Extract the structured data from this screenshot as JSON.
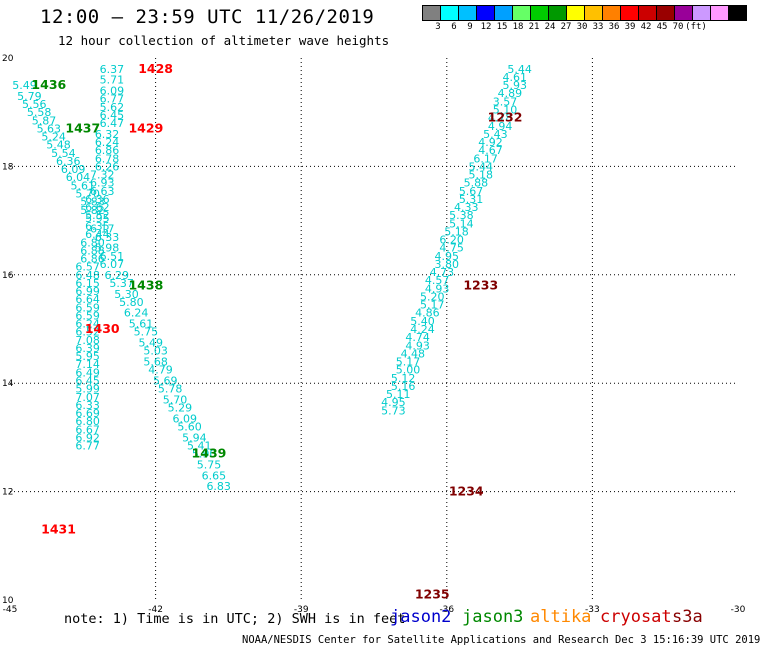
{
  "header": {
    "title": "12:00 – 23:59 UTC 11/26/2019",
    "subtitle": "12 hour collection of altimeter wave heights"
  },
  "colorbar": {
    "labels": [
      "3",
      "6",
      "9",
      "12",
      "15",
      "18",
      "21",
      "24",
      "27",
      "30",
      "33",
      "36",
      "39",
      "42",
      "45",
      "70",
      "(ft)"
    ],
    "colors": [
      "#808080",
      "#00ffff",
      "#00c0ff",
      "#0000ff",
      "#00a0ff",
      "#66ff66",
      "#00cc00",
      "#009900",
      "#ffff00",
      "#ffc000",
      "#ff8000",
      "#ff0000",
      "#cc0000",
      "#990000",
      "#990099",
      "#cc99ff",
      "#ff99ff",
      "#000000"
    ]
  },
  "footer": {
    "note": "note:  1) Time is in UTC;  2) SWH is in feet",
    "credit": "NOAA/NESDIS Center for Satellite Applications and Research    Dec  3 15:16:39 UTC 2019",
    "satellites": [
      {
        "name": "jason2",
        "color": "#0000cc"
      },
      {
        "name": "jason3",
        "color": "#008800"
      },
      {
        "name": "altika",
        "color": "#ff8800"
      },
      {
        "name": "cryosat",
        "color": "#cc0000"
      },
      {
        "name": "s3a",
        "color": "#880000"
      }
    ]
  },
  "chart_data": {
    "type": "scatter",
    "title": "12:00 – 23:59 UTC 11/26/2019",
    "xlim": [
      -45,
      -30
    ],
    "ylim": [
      10,
      20
    ],
    "x_ticks": [
      -45,
      -42,
      -39,
      -36,
      -33,
      -30
    ],
    "y_ticks": [
      10,
      12,
      14,
      16,
      18,
      20
    ],
    "grid": true,
    "value_color": "#00cccc",
    "passes": [
      {
        "time": "1428",
        "color": "#ff0000",
        "label_lon": -42.0,
        "label_lat": 19.8
      },
      {
        "time": "1429",
        "color": "#ff0000",
        "label_lon": -42.2,
        "label_lat": 18.7
      },
      {
        "time": "1430",
        "color": "#ff0000",
        "label_lon": -43.1,
        "label_lat": 15.0
      },
      {
        "time": "1431",
        "color": "#ff0000",
        "label_lon": -44.0,
        "label_lat": 11.3
      },
      {
        "time": "1436",
        "color": "#008800",
        "label_lon": -44.2,
        "label_lat": 19.5
      },
      {
        "time": "1437",
        "color": "#008800",
        "label_lon": -43.5,
        "label_lat": 18.7
      },
      {
        "time": "1438",
        "color": "#008800",
        "label_lon": -42.2,
        "label_lat": 15.8
      },
      {
        "time": "1439",
        "color": "#008800",
        "label_lon": -40.9,
        "label_lat": 12.7
      },
      {
        "time": "1232",
        "color": "#800000",
        "label_lon": -34.8,
        "label_lat": 18.9
      },
      {
        "time": "1233",
        "color": "#800000",
        "label_lon": -35.3,
        "label_lat": 15.8
      },
      {
        "time": "1234",
        "color": "#800000",
        "label_lon": -35.6,
        "label_lat": 12.0
      },
      {
        "time": "1235",
        "color": "#800000",
        "label_lon": -36.3,
        "label_lat": 10.1
      }
    ],
    "tracks": [
      {
        "name": "",
        "lon_start": -43.0,
        "lat_start": 19.9,
        "lon_end": -43.0,
        "lat_end": 10.1,
        "values": [
          "6.37",
          "5.71",
          "6.09",
          "6.77",
          "5.62",
          "6.45",
          "6.47",
          "6.32",
          "6.24",
          "6.86",
          "6.78",
          "6.26",
          "7.32",
          "6.93",
          "6.63",
          "6.36",
          "6.62",
          "5.52",
          "6.17",
          "6.33",
          "5.98",
          "6.51",
          "6.07",
          "6.29",
          "5.37",
          "5.30",
          "5.80",
          "6.24",
          "5.61",
          "5.75",
          "5.49",
          "5.03",
          "5.68",
          "4.79",
          "5.69",
          "5.78",
          "5.70",
          "5.29",
          "6.09",
          "5.60",
          "5.94",
          "5.41",
          "5.90",
          "5.75",
          "6.65",
          "6.83"
        ],
        "lons": [
          -42.9,
          -42.9,
          -42.9,
          -42.9,
          -42.9,
          -42.9,
          -42.9,
          -43.0,
          -43.0,
          -43.0,
          -43.0,
          -43.0,
          -43.1,
          -43.1,
          -43.1,
          -43.2,
          -43.2,
          -43.2,
          -43.1,
          -43.0,
          -43.0,
          -42.9,
          -42.9,
          -42.8,
          -42.7,
          -42.6,
          -42.5,
          -42.4,
          -42.3,
          -42.2,
          -42.1,
          -42.0,
          -42.0,
          -41.9,
          -41.8,
          -41.7,
          -41.6,
          -41.5,
          -41.4,
          -41.3,
          -41.2,
          -41.1,
          -41.0,
          -40.9,
          -40.8,
          -40.7
        ],
        "lats": [
          19.8,
          19.6,
          19.4,
          19.25,
          19.1,
          18.95,
          18.8,
          18.6,
          18.45,
          18.3,
          18.15,
          18.0,
          17.85,
          17.7,
          17.55,
          17.4,
          17.25,
          17.1,
          16.85,
          16.7,
          16.5,
          16.35,
          16.2,
          16.0,
          15.85,
          15.65,
          15.5,
          15.3,
          15.1,
          14.95,
          14.75,
          14.6,
          14.4,
          14.25,
          14.05,
          13.9,
          13.7,
          13.55,
          13.35,
          13.2,
          13.0,
          12.85,
          12.7,
          12.5,
          12.3,
          12.1
        ]
      }
    ],
    "tracks_left": {
      "values": [
        "5.49",
        "5.79",
        "5.56",
        "5.58",
        "5.87",
        "5.63",
        "5.24",
        "5.48",
        "5.54",
        "6.36",
        "6.09",
        "6.04",
        "5.61",
        "5.70",
        "5.83",
        "5.82",
        "5.95",
        "6.35",
        "6.44",
        "6.80",
        "6.88",
        "6.86",
        "6.57",
        "6.48",
        "6.15",
        "6.99",
        "6.64",
        "6.59",
        "6.59",
        "6.24",
        "6.52",
        "7.08",
        "6.39",
        "5.95",
        "7.14",
        "6.49",
        "6.45",
        "5.99",
        "7.07",
        "6.33",
        "6.69",
        "6.80",
        "6.67",
        "6.92",
        "6.77"
      ],
      "lons": [
        -44.7,
        -44.6,
        -44.5,
        -44.4,
        -44.3,
        -44.2,
        -44.1,
        -44.0,
        -43.9,
        -43.8,
        -43.7,
        -43.6,
        -43.5,
        -43.4,
        -43.3,
        -43.3,
        -43.2,
        -43.2,
        -43.2,
        -43.3,
        -43.3,
        -43.3,
        -43.4,
        -43.4,
        -43.4,
        -43.4,
        -43.4,
        -43.4,
        -43.4,
        -43.4,
        -43.4,
        -43.4,
        -43.4,
        -43.4,
        -43.4,
        -43.4,
        -43.4,
        -43.4,
        -43.4,
        -43.4,
        -43.4,
        -43.4,
        -43.4,
        -43.4,
        -43.4
      ],
      "lats": [
        19.5,
        19.3,
        19.15,
        19.0,
        18.85,
        18.7,
        18.55,
        18.4,
        18.25,
        18.1,
        17.95,
        17.8,
        17.65,
        17.5,
        17.35,
        17.2,
        17.05,
        16.9,
        16.75,
        16.6,
        16.45,
        16.3,
        16.15,
        16.0,
        15.85,
        15.7,
        15.55,
        15.4,
        15.25,
        15.1,
        14.95,
        14.8,
        14.65,
        14.5,
        14.35,
        14.2,
        14.05,
        13.9,
        13.75,
        13.6,
        13.45,
        13.3,
        13.15,
        13.0,
        12.85
      ]
    },
    "tracks_right": {
      "values": [
        "5.44",
        "4.61",
        "5.93",
        "4.89",
        "3.57",
        "5.10",
        "4.78",
        "4.94",
        "5.43",
        "4.92",
        "4.67",
        "6.17",
        "5.44",
        "5.18",
        "5.88",
        "5.67",
        "5.31",
        "4.33",
        "5.38",
        "5.14",
        "5.18",
        "6.20",
        "4.75",
        "4.95",
        "3.80",
        "4.73",
        "4.57",
        "4.93",
        "5.20",
        "5.17",
        "4.86",
        "5.40",
        "4.24",
        "4.74",
        "4.93",
        "4.48",
        "5.17",
        "5.00",
        "5.12",
        "5.16",
        "5.11",
        "4.95",
        "5.73"
      ],
      "lons": [
        -34.5,
        -34.6,
        -34.6,
        -34.7,
        -34.8,
        -34.8,
        -34.9,
        -34.9,
        -35.0,
        -35.1,
        -35.1,
        -35.2,
        -35.3,
        -35.3,
        -35.4,
        -35.5,
        -35.5,
        -35.6,
        -35.7,
        -35.7,
        -35.8,
        -35.9,
        -35.9,
        -36.0,
        -36.0,
        -36.1,
        -36.2,
        -36.2,
        -36.3,
        -36.3,
        -36.4,
        -36.5,
        -36.5,
        -36.6,
        -36.6,
        -36.7,
        -36.8,
        -36.8,
        -36.9,
        -36.9,
        -37.0,
        -37.1,
        -37.1
      ],
      "lats": [
        19.8,
        19.65,
        19.5,
        19.35,
        19.2,
        19.05,
        18.9,
        18.75,
        18.6,
        18.45,
        18.3,
        18.15,
        18.0,
        17.85,
        17.7,
        17.55,
        17.4,
        17.25,
        17.1,
        16.95,
        16.8,
        16.65,
        16.5,
        16.35,
        16.2,
        16.05,
        15.9,
        15.75,
        15.6,
        15.45,
        15.3,
        15.15,
        15.0,
        14.85,
        14.7,
        14.55,
        14.4,
        14.25,
        14.1,
        13.95,
        13.8,
        13.65,
        13.5
      ]
    }
  }
}
